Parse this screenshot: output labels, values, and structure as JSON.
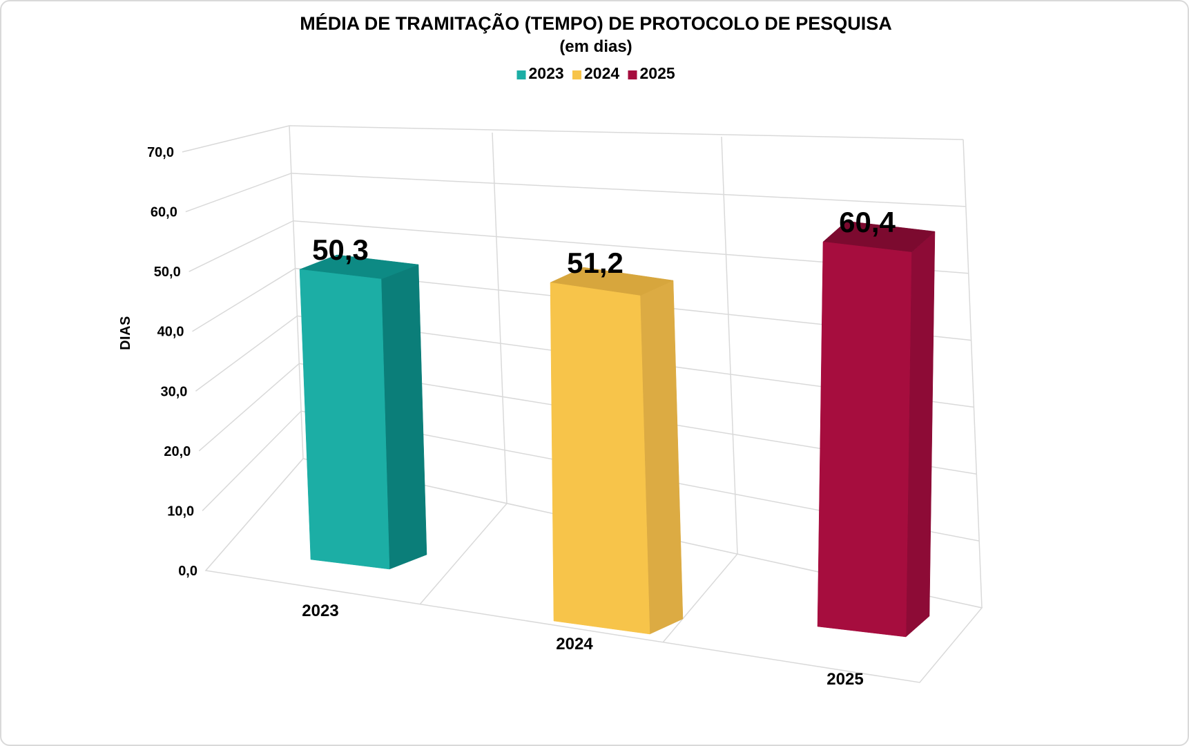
{
  "title": {
    "line1": "MÉDIA DE TRAMITAÇÃO (TEMPO) DE PROTOCOLO DE PESQUISA",
    "line2": "(em dias)"
  },
  "legend": {
    "position": "top",
    "items": [
      {
        "label": "2023",
        "color": "#1CAEA5"
      },
      {
        "label": "2024",
        "color": "#F7C44A"
      },
      {
        "label": "2025",
        "color": "#A60D3E"
      }
    ]
  },
  "y_axis": {
    "label": "DIAS",
    "min": 0,
    "max": 70,
    "step": 10,
    "tick_labels": [
      "0,0",
      "10,0",
      "20,0",
      "30,0",
      "40,0",
      "50,0",
      "60,0",
      "70,0"
    ]
  },
  "chart_data": {
    "type": "bar",
    "style": "3d-column",
    "title": "MÉDIA DE TRAMITAÇÃO (TEMPO) DE PROTOCOLO DE PESQUISA (em dias)",
    "xlabel": "",
    "ylabel": "DIAS",
    "ylim": [
      0,
      70
    ],
    "grid": true,
    "legend_position": "top",
    "categories": [
      "2023",
      "2024",
      "2025"
    ],
    "values": [
      50.3,
      51.2,
      60.4
    ],
    "value_labels": [
      "50,3",
      "51,2",
      "60,4"
    ],
    "colors": [
      {
        "front": "#1CAEA5",
        "top": "#0D8A84",
        "side": "#0B7E79"
      },
      {
        "front": "#F7C44A",
        "top": "#D7A63D",
        "side": "#DCAB43"
      },
      {
        "front": "#A60D3E",
        "top": "#7C0A2F",
        "side": "#8D0B36"
      }
    ]
  },
  "frame": {
    "background": "#FFFFFF",
    "border_color": "#D9D9D9",
    "grid_color": "#D9D9D9",
    "text_color": "#000000"
  }
}
